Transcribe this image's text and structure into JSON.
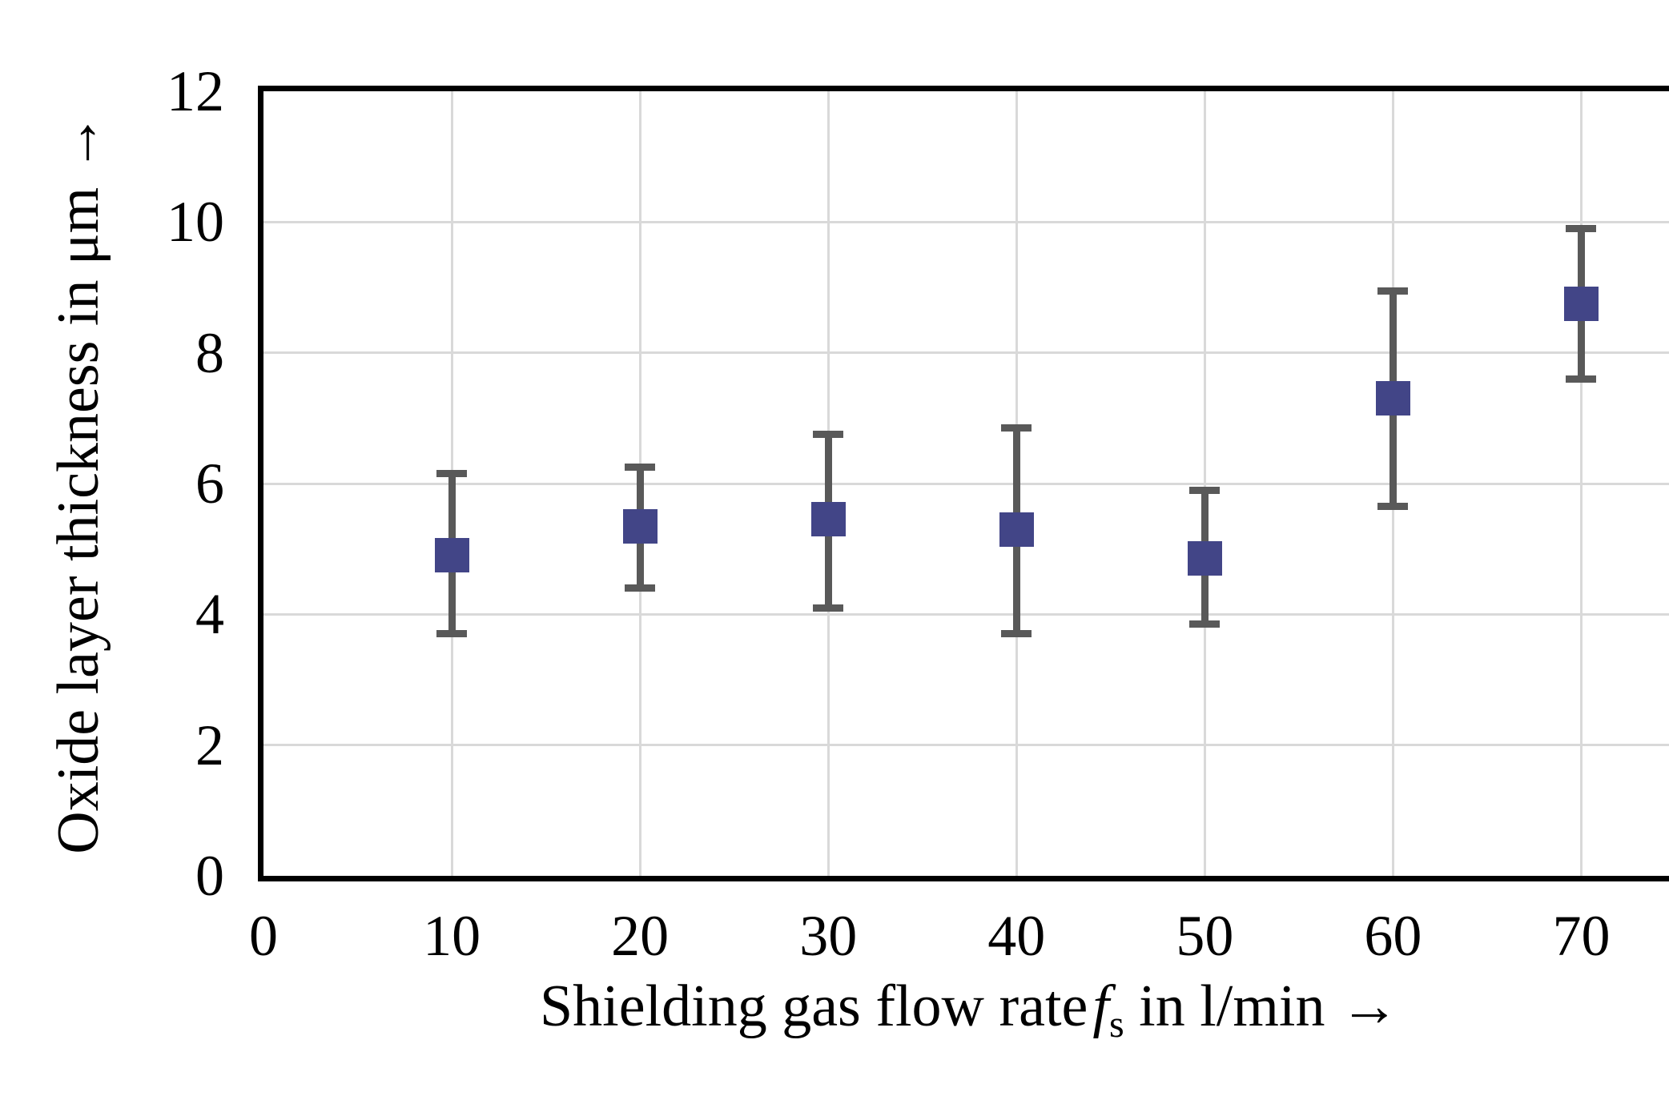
{
  "chart_data": {
    "type": "scatter",
    "title": "",
    "ylabel": "Oxide layer thickness in μm →",
    "xlabel": {
      "prefix": "Shielding gas flow rate",
      "variable": "f",
      "subscript": "s",
      "suffix": " in l/min →"
    },
    "x": [
      10,
      20,
      30,
      40,
      50,
      60,
      70
    ],
    "y": [
      4.9,
      5.35,
      5.45,
      5.3,
      4.85,
      7.3,
      8.75
    ],
    "error_upper": [
      6.15,
      6.25,
      6.75,
      6.85,
      5.9,
      8.95,
      9.9
    ],
    "error_lower": [
      3.7,
      4.4,
      4.1,
      3.7,
      3.85,
      5.65,
      7.6
    ],
    "xlim": [
      0,
      75
    ],
    "ylim": [
      0,
      12
    ],
    "xticks": [
      0,
      10,
      20,
      30,
      40,
      50,
      60,
      70
    ],
    "yticks": [
      0,
      2,
      4,
      6,
      8,
      10,
      12
    ],
    "grid": true,
    "legend": null,
    "marker": "square",
    "colors": {
      "marker": "#424587",
      "error_bar": "#595959",
      "gridline": "#D9D9D9",
      "frame": "#000000",
      "background": "#FFFFFF",
      "text": "#000000"
    }
  }
}
